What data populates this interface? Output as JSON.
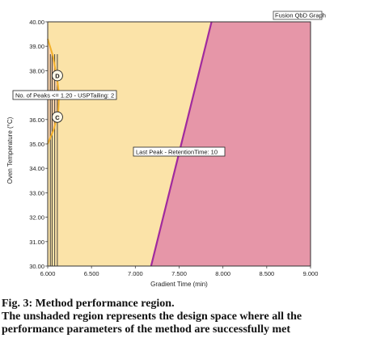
{
  "chart_data": {
    "type": "area",
    "title": "Fusion QbD Graph",
    "xlabel": "Gradient Time (min)",
    "ylabel": "Oven Temperature (°C)",
    "xlim": [
      6.0,
      9.0
    ],
    "ylim": [
      30.0,
      40.0
    ],
    "x_ticks": [
      "6.000",
      "6.500",
      "7.000",
      "7.500",
      "8.000",
      "8.500",
      "9.000"
    ],
    "y_ticks": [
      "30.00",
      "31.00",
      "32.00",
      "33.00",
      "34.00",
      "35.00",
      "36.00",
      "37.00",
      "38.00",
      "39.00",
      "40.00"
    ],
    "colors": {
      "background": "#fbe3a8",
      "failure_region": "#e696a8",
      "boundary": "#a02a9e",
      "peaks_boundary": "#f3b02a",
      "vertical_lines": "#333333"
    },
    "regions": [
      {
        "label": "Last Peak - RetentionTime: 10",
        "boundary_line": [
          [
            7.18,
            30.0
          ],
          [
            7.87,
            40.0
          ]
        ],
        "side": "right"
      },
      {
        "label": "No. of Peaks <= 1.20 - USPTailing: 2",
        "boundary_curve": [
          [
            6.0,
            39.3
          ],
          [
            6.06,
            38.6
          ],
          [
            6.11,
            37.6
          ],
          [
            6.13,
            37.0
          ],
          [
            6.12,
            36.3
          ],
          [
            6.07,
            35.6
          ],
          [
            6.0,
            35.0
          ]
        ],
        "side": "left"
      }
    ],
    "vertical_lines_x": [
      6.03,
      6.05,
      6.08,
      6.11
    ],
    "markers": [
      {
        "label": "D",
        "x": 6.11,
        "y": 37.8
      },
      {
        "label": "C",
        "x": 6.11,
        "y": 36.1
      }
    ],
    "annotations": {
      "peaks": "No. of Peaks <= 1.20 - USPTailing: 2",
      "last_peak": "Last Peak - RetentionTime: 10"
    }
  },
  "caption": {
    "line1": "Fig. 3: Method performance region.",
    "line2": "The unshaded region represents the design space where all the",
    "line3": "performance parameters of the method are successfully met"
  }
}
